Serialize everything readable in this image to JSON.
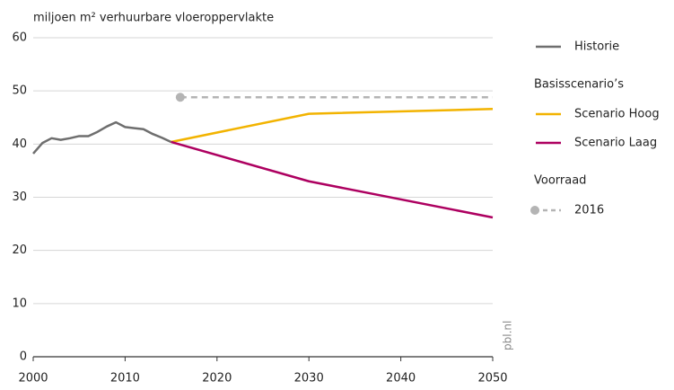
{
  "chart_data": {
    "type": "line",
    "y_label": "miljoen m² verhuurbare vloeroppervlakte",
    "source": "pbl.nl",
    "xlim": [
      2000,
      2050
    ],
    "xticks": [
      2000,
      2010,
      2020,
      2030,
      2040,
      2050
    ],
    "ylim": [
      0,
      60
    ],
    "yticks": [
      0,
      10,
      20,
      30,
      40,
      50,
      60
    ],
    "grid": true,
    "series": [
      {
        "name": "Historie",
        "color": "#6e6e6e",
        "x": [
          2000,
          2001,
          2002,
          2003,
          2004,
          2005,
          2006,
          2007,
          2008,
          2009,
          2010,
          2011,
          2012,
          2013,
          2014,
          2015
        ],
        "values": [
          38.2,
          40.2,
          41.1,
          40.8,
          41.1,
          41.5,
          41.5,
          42.3,
          43.3,
          44.1,
          43.2,
          43.0,
          42.8,
          41.9,
          41.2,
          40.4
        ]
      },
      {
        "name": "Scenario Hoog",
        "group": "Basisscenario’s",
        "color": "#f2b300",
        "x": [
          2015,
          2030,
          2050
        ],
        "values": [
          40.4,
          45.7,
          46.6
        ]
      },
      {
        "name": "Scenario Laag",
        "group": "Basisscenario’s",
        "color": "#ad0060",
        "x": [
          2015,
          2030,
          2050
        ],
        "values": [
          40.4,
          33.0,
          26.2
        ]
      },
      {
        "name": "2016",
        "group": "Voorraad",
        "color": "#b4b4b4",
        "dashed": true,
        "marker": "start",
        "x": [
          2016,
          2050
        ],
        "values": [
          48.8,
          48.8
        ]
      }
    ]
  }
}
